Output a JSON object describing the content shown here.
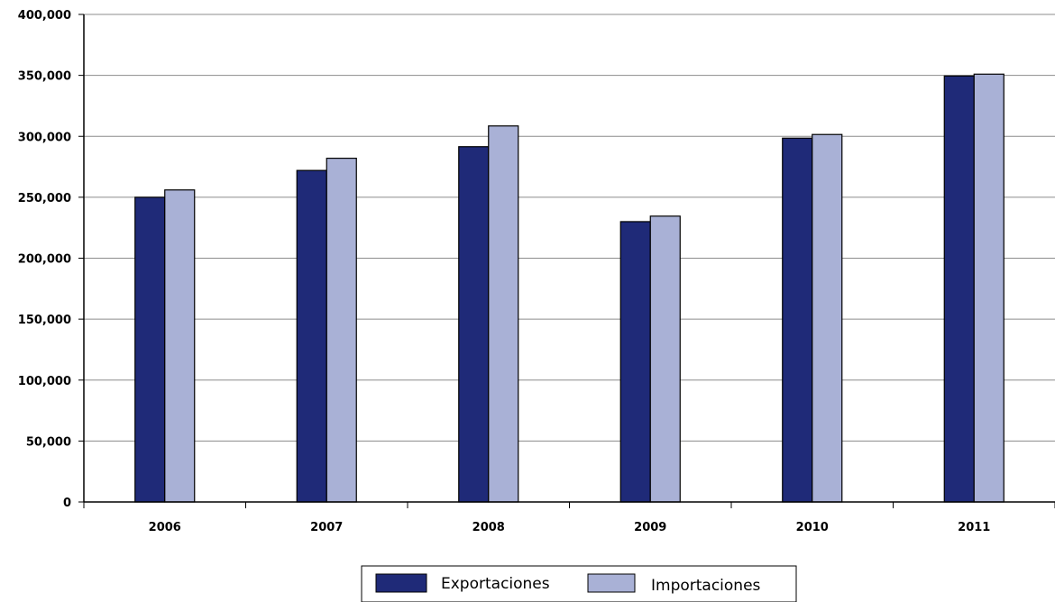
{
  "chart_data": {
    "type": "bar",
    "categories": [
      "2006",
      "2007",
      "2008",
      "2009",
      "2010",
      "2011"
    ],
    "series": [
      {
        "name": "Exportaciones",
        "color": "#1f2a78",
        "values": [
          250000,
          272000,
          291500,
          230000,
          298500,
          349500
        ]
      },
      {
        "name": "Importaciones",
        "color": "#a9b1d6",
        "values": [
          256000,
          282000,
          308500,
          234500,
          301500,
          351000
        ]
      }
    ],
    "ylim": [
      0,
      400000
    ],
    "yticks": [
      "0",
      "50,000",
      "100,000",
      "150,000",
      "200,000",
      "250,000",
      "300,000",
      "350,000",
      "400,000"
    ],
    "grid": true,
    "legend_position": "bottom"
  }
}
